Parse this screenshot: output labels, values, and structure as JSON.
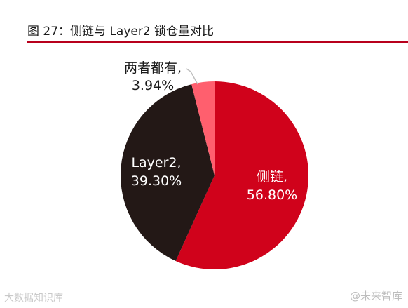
{
  "title": "图 27：侧链与 Layer2 锁仓量对比",
  "colors": {
    "title_rule": "#b8001c",
    "slice_sidechain": "#d0021b",
    "slice_layer2": "#231816",
    "slice_both": "#ff5f6e",
    "leader_line": "#bfbfbf"
  },
  "chart_data": {
    "type": "pie",
    "title": "图 27：侧链与 Layer2 锁仓量对比",
    "start_angle_deg": 0,
    "direction": "clockwise",
    "slices": [
      {
        "label": "侧链",
        "value": 56.8,
        "value_text": "56.80%",
        "color": "#d0021b",
        "label_color": "#ffffff"
      },
      {
        "label": "Layer2",
        "value": 39.3,
        "value_text": "39.30%",
        "color": "#231816",
        "label_color": "#ffffff"
      },
      {
        "label": "两者都有",
        "value": 3.94,
        "value_text": "3.94%",
        "color": "#ff5f6e",
        "label_color": "#1a1a1a"
      }
    ]
  },
  "watermarks": {
    "left": "大数据知识库",
    "right": "@未来智库"
  }
}
